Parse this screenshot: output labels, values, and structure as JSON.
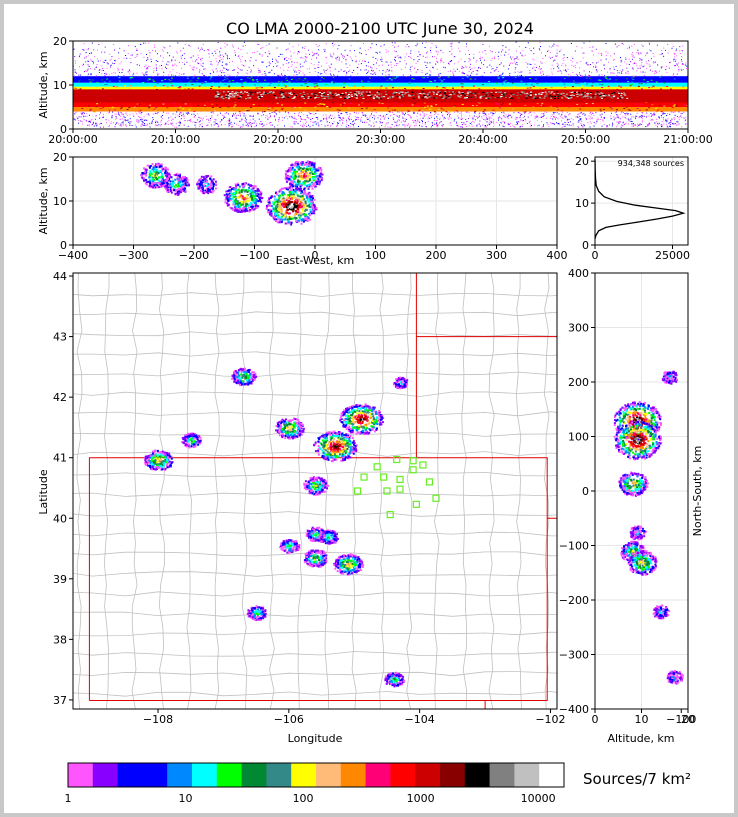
{
  "title": "CO LMA 2000-2100 UTC June 30, 2024",
  "colors": {
    "background": "#c8c8c8",
    "panel": "#ffffff",
    "state_border": "#e00000",
    "county_border": "#c0c0c0",
    "station_marker": "#66ee22",
    "profile_line": "#000000"
  },
  "chart_data": [
    {
      "id": "time-height",
      "type": "heatmap",
      "ylabel": "Altitude, km",
      "ylim": [
        0,
        20
      ],
      "yticks": [
        "0",
        "10",
        "20"
      ],
      "xlim": [
        "20:00:00",
        "21:00:00"
      ],
      "xticks": [
        "20:00:00",
        "20:10:00",
        "20:20:00",
        "20:30:00",
        "20:40:00",
        "20:50:00",
        "21:00:00"
      ],
      "bands": [
        {
          "alt_range": [
            0.5,
            4
          ],
          "color_class": "sparse"
        },
        {
          "alt_range": [
            4,
            12
          ],
          "color_class": "dense"
        },
        {
          "alt_range": [
            6,
            9
          ],
          "color_class": "peak"
        },
        {
          "alt_range": [
            12,
            20
          ],
          "color_class": "sparse"
        }
      ]
    },
    {
      "id": "ew-height",
      "type": "heatmap",
      "xlabel": "East-West, km",
      "ylabel": "Altitude, km",
      "xlim": [
        -400,
        400
      ],
      "ylim": [
        0,
        20
      ],
      "xticks": [
        "−400",
        "−300",
        "−200",
        "−100",
        "0",
        "100",
        "200",
        "300",
        "400"
      ],
      "yticks": [
        "0",
        "10",
        "20"
      ],
      "clusters": [
        {
          "x": -265,
          "alt": 16,
          "level": 3
        },
        {
          "x": -230,
          "alt": 14,
          "level": 2
        },
        {
          "x": -180,
          "alt": 14,
          "level": 1
        },
        {
          "x": -120,
          "alt": 11,
          "level": 5
        },
        {
          "x": -40,
          "alt": 9,
          "level": 8
        },
        {
          "x": -20,
          "alt": 16,
          "level": 5
        }
      ]
    },
    {
      "id": "altitude-histogram",
      "type": "line",
      "annotation": "934,348 sources",
      "xlim": [
        0,
        30000
      ],
      "ylim": [
        0,
        21
      ],
      "xticks": [
        "0",
        "25000"
      ],
      "yticks": [
        "0",
        "10",
        "20"
      ],
      "points": [
        [
          0,
          1.5
        ],
        [
          300,
          2.3
        ],
        [
          1200,
          3.4
        ],
        [
          3500,
          4.2
        ],
        [
          8000,
          4.8
        ],
        [
          14000,
          5.5
        ],
        [
          20000,
          6.2
        ],
        [
          25000,
          6.9
        ],
        [
          28500,
          7.6
        ],
        [
          26000,
          8.2
        ],
        [
          20000,
          8.8
        ],
        [
          13000,
          9.5
        ],
        [
          7000,
          10.4
        ],
        [
          3000,
          11.5
        ],
        [
          1200,
          12.8
        ],
        [
          400,
          14.2
        ],
        [
          150,
          16
        ],
        [
          50,
          18
        ],
        [
          0,
          20.5
        ]
      ]
    },
    {
      "id": "plan-view",
      "type": "heatmap",
      "xlabel": "Longitude",
      "ylabel": "Latitude",
      "xlim": [
        -109.3,
        -101.9
      ],
      "ylim": [
        36.85,
        44.05
      ],
      "xticks": [
        "−108",
        "−106",
        "−104",
        "−102",
        "−100"
      ],
      "yticks": [
        "37",
        "38",
        "39",
        "40",
        "41",
        "42",
        "43",
        "44"
      ],
      "clusters": [
        {
          "lon": -108.0,
          "lat": 40.97,
          "level": 4
        },
        {
          "lon": -107.5,
          "lat": 41.3,
          "level": 2
        },
        {
          "lon": -106.7,
          "lat": 42.35,
          "level": 3
        },
        {
          "lon": -106.0,
          "lat": 41.5,
          "level": 4
        },
        {
          "lon": -105.3,
          "lat": 41.2,
          "level": 7
        },
        {
          "lon": -104.9,
          "lat": 41.65,
          "level": 7
        },
        {
          "lon": -105.6,
          "lat": 40.55,
          "level": 3
        },
        {
          "lon": -105.6,
          "lat": 39.75,
          "level": 2
        },
        {
          "lon": -106.0,
          "lat": 39.55,
          "level": 2
        },
        {
          "lon": -105.6,
          "lat": 39.35,
          "level": 3
        },
        {
          "lon": -105.4,
          "lat": 39.7,
          "level": 2
        },
        {
          "lon": -105.1,
          "lat": 39.25,
          "level": 4
        },
        {
          "lon": -106.5,
          "lat": 38.45,
          "level": 2
        },
        {
          "lon": -104.4,
          "lat": 37.35,
          "level": 2
        },
        {
          "lon": -104.3,
          "lat": 42.25,
          "level": 1
        }
      ],
      "stations": [
        [
          -104.35,
          40.97
        ],
        [
          -104.1,
          40.95
        ],
        [
          -103.95,
          40.88
        ],
        [
          -104.65,
          40.85
        ],
        [
          -104.1,
          40.8
        ],
        [
          -104.85,
          40.68
        ],
        [
          -104.55,
          40.68
        ],
        [
          -104.3,
          40.64
        ],
        [
          -103.85,
          40.6
        ],
        [
          -104.3,
          40.48
        ],
        [
          -104.5,
          40.45
        ],
        [
          -104.95,
          40.45
        ],
        [
          -103.75,
          40.33
        ],
        [
          -104.05,
          40.23
        ],
        [
          -104.45,
          40.06
        ]
      ]
    },
    {
      "id": "ns-height",
      "type": "heatmap",
      "xlabel": "Altitude, km",
      "ylabel": "North-South, km",
      "xlim": [
        0,
        20
      ],
      "ylim": [
        -400,
        400
      ],
      "xticks": [
        "0",
        "10",
        "20"
      ],
      "yticks": [
        "−400",
        "−300",
        "−200",
        "−100",
        "0",
        "100",
        "200",
        "300",
        "400"
      ],
      "clusters": [
        {
          "alt": 9,
          "ns": 130,
          "level": 8
        },
        {
          "alt": 9,
          "ns": 95,
          "level": 8
        },
        {
          "alt": 16,
          "ns": 210,
          "level": 1
        },
        {
          "alt": 8,
          "ns": 15,
          "level": 4
        },
        {
          "alt": 9,
          "ns": -75,
          "level": 1
        },
        {
          "alt": 8,
          "ns": -110,
          "level": 3
        },
        {
          "alt": 10,
          "ns": -130,
          "level": 4
        },
        {
          "alt": 14,
          "ns": -220,
          "level": 1
        },
        {
          "alt": 17,
          "ns": -340,
          "level": 1
        }
      ]
    }
  ],
  "colorbar": {
    "label": "Sources/7 km²",
    "ticks": [
      "1",
      "10",
      "100",
      "1000",
      "10000"
    ],
    "colors": [
      "#ff55ff",
      "#8800ff",
      "#0000ff",
      "#0000ff",
      "#0088ff",
      "#00ffff",
      "#00ff00",
      "#008833",
      "#338888",
      "#ffff00",
      "#ffbb77",
      "#ff8800",
      "#ff0077",
      "#ff0000",
      "#cc0000",
      "#880000",
      "#000000",
      "#808080",
      "#c0c0c0",
      "#ffffff"
    ]
  }
}
